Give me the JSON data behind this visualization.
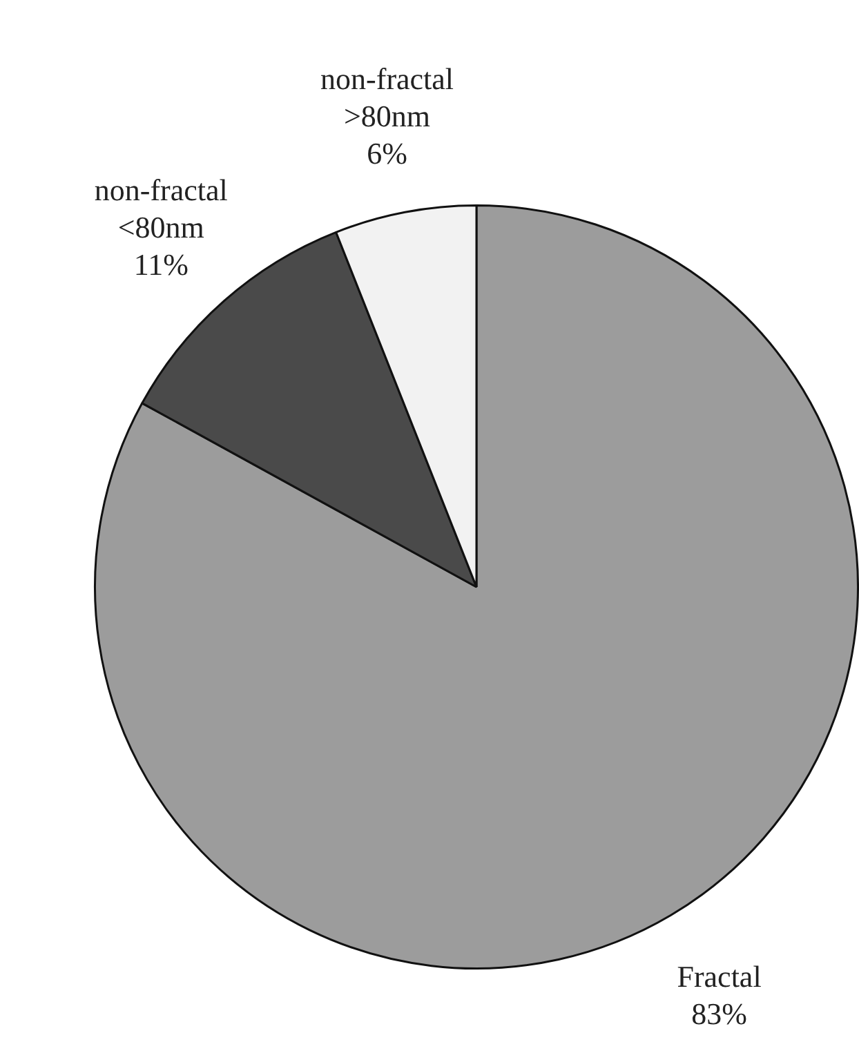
{
  "chart_data": {
    "type": "pie",
    "categories": [
      "Fractal",
      "non-fractal <80nm",
      "non-fractal >80nm"
    ],
    "values": [
      83,
      11,
      6
    ],
    "colors": [
      "#9c9c9c",
      "#4a4a4a",
      "#f2f2f2"
    ],
    "value_labels": [
      "83%",
      "11%",
      "6%"
    ],
    "legend": false
  }
}
